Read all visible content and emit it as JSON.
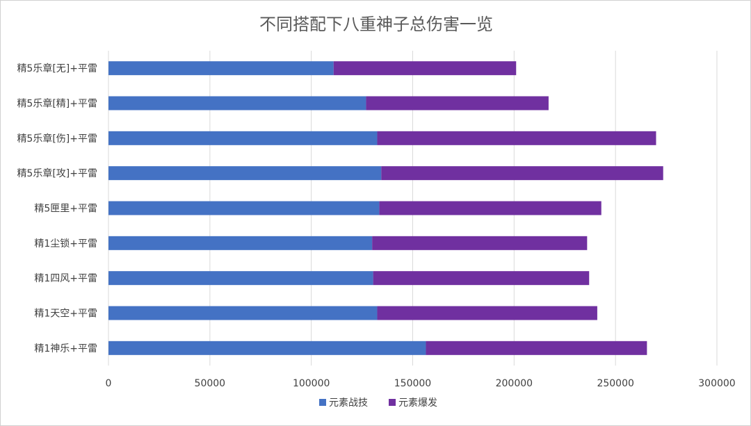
{
  "chart_data": {
    "type": "bar",
    "orientation": "horizontal",
    "stacked": true,
    "title": "不同搭配下八重神子总伤害一览",
    "categories": [
      "精5乐章[无]+平雷",
      "精5乐章[精]+平雷",
      "精5乐章[伤]+平雷",
      "精5乐章[攻]+平雷",
      "精5匣里+平雷",
      "精1尘锁+平雷",
      "精1四风+平雷",
      "精1天空+平雷",
      "精1神乐+平雷"
    ],
    "series": [
      {
        "name": "元素战技",
        "color": "#4472C4",
        "values": [
          111000,
          127000,
          132500,
          134500,
          133500,
          130000,
          130500,
          132500,
          156500
        ]
      },
      {
        "name": "元素爆发",
        "color": "#7030A0",
        "values": [
          90000,
          90000,
          137500,
          139000,
          109500,
          106000,
          106500,
          108500,
          109000
        ]
      }
    ],
    "x_ticks": [
      "0",
      "50000",
      "100000",
      "150000",
      "200000",
      "250000",
      "300000"
    ],
    "xlim": [
      0,
      300000
    ],
    "grid": "vertical",
    "legend_position": "bottom"
  }
}
